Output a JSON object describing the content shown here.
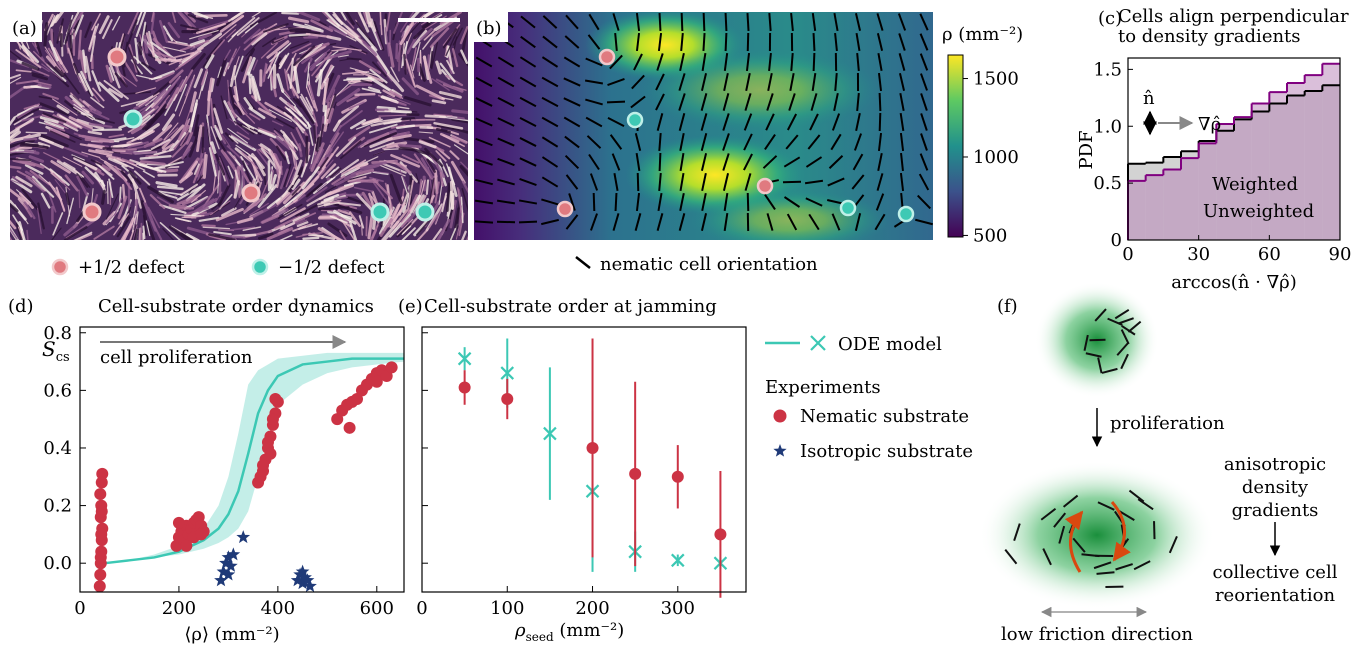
{
  "panel_labels": [
    "(a)",
    "(b)",
    "(c)",
    "(d)",
    "(e)",
    "(f)"
  ],
  "defect_legend": [
    "+1/2 defect",
    "−1/2 defect"
  ],
  "orientation_legend": "nematic cell orientation",
  "diagram": {
    "step": "proliferation",
    "gradient": [
      "anisotropic",
      "density",
      "gradients"
    ],
    "reorientation": [
      "collective cell",
      "reorientation"
    ],
    "friction": "low friction direction"
  },
  "chart_data": [
    {
      "type": "colorbar",
      "label": "ρ (mm⁻²)",
      "clim": [
        490,
        1650
      ],
      "ticks": [
        500,
        1000,
        1500
      ]
    },
    {
      "type": "histogram",
      "title": [
        "Cells align perpendicular",
        "to density gradients"
      ],
      "xlabel": "arccos(n̂ · ∇ρ̂)",
      "ylabel": "PDF",
      "annotations": [
        "n̂",
        "∇ρ̂"
      ],
      "bins": [
        0,
        7.5,
        15,
        22.5,
        30,
        37.5,
        45,
        52.5,
        60,
        67.5,
        75,
        82.5,
        90
      ],
      "series": [
        {
          "name": "Unweighted",
          "color": "#000000",
          "fill": "#a8a8a8",
          "values": [
            0.67,
            0.68,
            0.73,
            0.78,
            0.87,
            0.96,
            1.06,
            1.13,
            1.2,
            1.27,
            1.31,
            1.36
          ]
        },
        {
          "name": "Weighted",
          "color": "#800080",
          "fill": "#b57fb5",
          "values": [
            0.52,
            0.57,
            0.62,
            0.72,
            0.85,
            1.02,
            1.08,
            1.2,
            1.3,
            1.38,
            1.45,
            1.55
          ]
        }
      ],
      "xlim": [
        0,
        90
      ],
      "xticks": [
        0,
        30,
        60,
        90
      ],
      "ylim": [
        0,
        1.6
      ],
      "yticks": [
        0,
        0.5,
        {
          "value": 1,
          "label": "1.0"
        },
        1.5
      ]
    },
    {
      "type": "scatter",
      "title": "Cell-substrate order dynamics",
      "ylabel": {
        "main": "S",
        "sub": "cs"
      },
      "xlabel": "⟨ρ⟩  (mm⁻²)",
      "annotation": "cell proliferation",
      "xlim": [
        0,
        655
      ],
      "xticks": [
        0,
        200,
        400,
        600
      ],
      "ylim": [
        -0.1,
        0.82
      ],
      "yticks": [
        {
          "value": 0,
          "label": "0.0"
        },
        0.2,
        0.4,
        0.6,
        0.8
      ],
      "model": {
        "color": "#3cc8b4",
        "x": [
          50,
          100,
          150,
          200,
          250,
          280,
          300,
          320,
          340,
          360,
          380,
          400,
          450,
          500,
          550,
          600,
          655
        ],
        "values": [
          0.0,
          0.01,
          0.02,
          0.04,
          0.08,
          0.12,
          0.17,
          0.25,
          0.38,
          0.52,
          0.6,
          0.65,
          0.69,
          0.7,
          0.71,
          0.71,
          0.71
        ],
        "upper": [
          0.0,
          0.01,
          0.03,
          0.06,
          0.12,
          0.2,
          0.3,
          0.45,
          0.62,
          0.67,
          0.69,
          0.71,
          0.72,
          0.73,
          0.73,
          0.73,
          0.73
        ],
        "lower": [
          0.0,
          0.01,
          0.02,
          0.03,
          0.05,
          0.07,
          0.09,
          0.12,
          0.18,
          0.3,
          0.45,
          0.55,
          0.62,
          0.66,
          0.68,
          0.69,
          0.7
        ]
      },
      "series": [
        {
          "color": "#cc3344",
          "marker": "circle",
          "x": [
            40,
            41,
            42,
            43,
            44,
            45,
            42,
            43,
            41,
            44,
            45,
            43,
            42,
            44,
            195,
            200,
            205,
            210,
            215,
            220,
            225,
            230,
            235,
            240,
            245,
            250,
            200,
            215,
            230,
            245,
            360,
            365,
            370,
            375,
            380,
            385,
            390,
            395,
            400,
            370,
            380,
            390,
            395,
            385,
            520,
            530,
            540,
            550,
            560,
            570,
            580,
            590,
            600,
            610,
            620,
            630,
            545,
            600
          ],
          "values": [
            -0.08,
            -0.04,
            0.0,
            0.04,
            0.08,
            0.12,
            0.16,
            0.2,
            0.24,
            0.28,
            0.31,
            0.1,
            0.02,
            0.18,
            0.06,
            0.09,
            0.11,
            0.08,
            0.13,
            0.1,
            0.12,
            0.14,
            0.15,
            0.16,
            0.13,
            0.11,
            0.14,
            0.06,
            0.09,
            0.1,
            0.28,
            0.3,
            0.32,
            0.36,
            0.4,
            0.44,
            0.48,
            0.52,
            0.56,
            0.34,
            0.42,
            0.5,
            0.57,
            0.38,
            0.5,
            0.53,
            0.55,
            0.56,
            0.57,
            0.6,
            0.62,
            0.64,
            0.66,
            0.67,
            0.65,
            0.68,
            0.47,
            0.63
          ]
        },
        {
          "name": "Isotropic substrate",
          "color": "#1f3a78",
          "marker": "star",
          "x": [
            285,
            290,
            295,
            300,
            305,
            310,
            300,
            330,
            440,
            445,
            450,
            455,
            460,
            465,
            450
          ],
          "values": [
            -0.06,
            -0.03,
            0.0,
            0.02,
            -0.01,
            0.03,
            -0.04,
            0.09,
            -0.06,
            -0.04,
            -0.07,
            -0.05,
            -0.06,
            -0.08,
            -0.03
          ]
        }
      ]
    },
    {
      "type": "errorbar",
      "title": "Cell-substrate order at jamming",
      "xlabel": {
        "main": "ρ",
        "sub": "seed",
        "rest": " (mm⁻²)"
      },
      "legend_heading": "Experiments",
      "xlim": [
        0,
        380
      ],
      "xticks": [
        0,
        100,
        200,
        300
      ],
      "ylim": [
        -0.1,
        0.82
      ],
      "yticks": [
        0,
        0.2,
        0.4,
        0.6,
        0.8
      ],
      "series": [
        {
          "name": "ODE model",
          "color": "#3cc8b4",
          "marker": "x",
          "x": [
            50,
            100,
            150,
            200,
            250,
            300,
            350
          ],
          "values": [
            0.71,
            0.66,
            0.45,
            0.25,
            0.04,
            0.01,
            0.0
          ],
          "errors": [
            0.04,
            0.12,
            0.23,
            0.28,
            0.07,
            0.02,
            0.02
          ]
        },
        {
          "name": "Nematic substrate",
          "color": "#cc3344",
          "marker": "circle",
          "x": [
            50,
            100,
            200,
            250,
            300,
            350
          ],
          "values": [
            0.61,
            0.57,
            0.4,
            0.31,
            0.3,
            0.1
          ],
          "errors": [
            0.06,
            0.07,
            0.38,
            0.32,
            0.11,
            0.22
          ]
        }
      ]
    }
  ]
}
